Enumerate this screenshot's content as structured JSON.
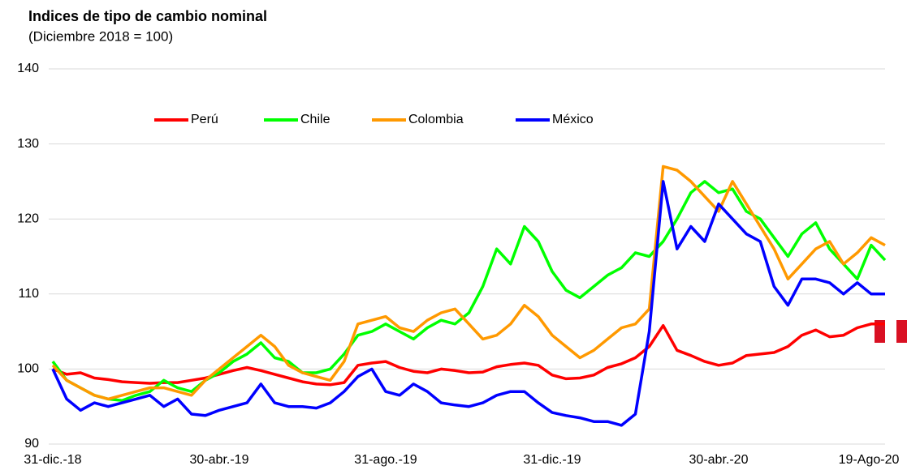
{
  "chart_data": {
    "type": "line",
    "title": "Indices de tipo de cambio nominal",
    "subtitle": "(Diciembre 2018 = 100)",
    "categories": [
      "31-dic.-18",
      null,
      null,
      null,
      null,
      null,
      null,
      null,
      null,
      null,
      null,
      null,
      "30-abr.-19",
      null,
      null,
      null,
      null,
      null,
      null,
      null,
      null,
      null,
      null,
      null,
      "31-ago.-19",
      null,
      null,
      null,
      null,
      null,
      null,
      null,
      null,
      null,
      null,
      null,
      "31-dic.-19",
      null,
      null,
      null,
      null,
      null,
      null,
      null,
      null,
      null,
      null,
      null,
      "30-abr.-20",
      null,
      null,
      null,
      null,
      null,
      null,
      null,
      null,
      null,
      null,
      "19-Ago-20",
      null
    ],
    "series": [
      {
        "name": "Perú",
        "color": "#ff0000",
        "values": [
          100,
          99.3,
          99.5,
          98.8,
          98.6,
          98.3,
          98.2,
          98.1,
          98.2,
          98.2,
          98.5,
          98.8,
          99.3,
          99.8,
          100.2,
          99.8,
          99.3,
          98.8,
          98.3,
          98,
          97.9,
          98.2,
          100.5,
          100.8,
          101,
          100.2,
          99.7,
          99.5,
          100,
          99.8,
          99.5,
          99.6,
          100.3,
          100.6,
          100.8,
          100.5,
          99.2,
          98.7,
          98.8,
          99.2,
          100.2,
          100.7,
          101.5,
          103,
          105.8,
          102.5,
          101.8,
          101,
          100.5,
          100.8,
          101.8,
          102,
          102.2,
          103,
          104.5,
          105.2,
          104.3,
          104.5,
          105.5,
          106,
          106
        ]
      },
      {
        "name": "Chile",
        "color": "#00ff00",
        "values": [
          101,
          98.5,
          97.5,
          96.5,
          96,
          95.8,
          96.5,
          97,
          98.5,
          97.5,
          97,
          98.5,
          99.5,
          101,
          102,
          103.5,
          101.5,
          101,
          99.5,
          99.5,
          100,
          102,
          104.5,
          105,
          106,
          105,
          104,
          105.5,
          106.5,
          106,
          107.5,
          111,
          116,
          114,
          119,
          117,
          113,
          110.5,
          109.5,
          111,
          112.5,
          113.5,
          115.5,
          115,
          117,
          120,
          123.5,
          125,
          123.5,
          124,
          121,
          120,
          117.5,
          115,
          118,
          119.5,
          116,
          114,
          112,
          116.5,
          114.5
        ]
      },
      {
        "name": "Colombia",
        "color": "#ff9900",
        "values": [
          100.5,
          98.5,
          97.5,
          96.5,
          96,
          96.5,
          97,
          97.5,
          97.5,
          97,
          96.5,
          98.5,
          100,
          101.5,
          103,
          104.5,
          103,
          100.5,
          99.5,
          99,
          98.5,
          101,
          106,
          106.5,
          107,
          105.5,
          105,
          106.5,
          107.5,
          108,
          106,
          104,
          104.5,
          106,
          108.5,
          107,
          104.5,
          103,
          101.5,
          102.5,
          104,
          105.5,
          106,
          108,
          127,
          126.5,
          125,
          123,
          121,
          125,
          122,
          119,
          116,
          112,
          114,
          116,
          117,
          114,
          115.5,
          117.5,
          116.5
        ]
      },
      {
        "name": "México",
        "color": "#0000ff",
        "values": [
          100,
          96,
          94.5,
          95.5,
          95,
          95.5,
          96,
          96.5,
          95,
          96,
          94,
          93.8,
          94.5,
          95,
          95.5,
          98,
          95.5,
          95,
          95,
          94.8,
          95.5,
          97,
          99,
          100,
          97,
          96.5,
          98,
          97,
          95.5,
          95.2,
          95,
          95.5,
          96.5,
          97,
          97,
          95.5,
          94.2,
          93.8,
          93.5,
          93,
          93,
          92.5,
          94,
          105,
          125,
          116,
          119,
          117,
          122,
          120,
          118,
          117,
          111,
          108.5,
          112,
          112,
          111.5,
          110,
          111.5,
          110,
          110
        ]
      }
    ],
    "ylim": [
      90,
      140
    ],
    "yticks": [
      90,
      100,
      110,
      120,
      130,
      140
    ],
    "grid": true,
    "legend": "top"
  }
}
